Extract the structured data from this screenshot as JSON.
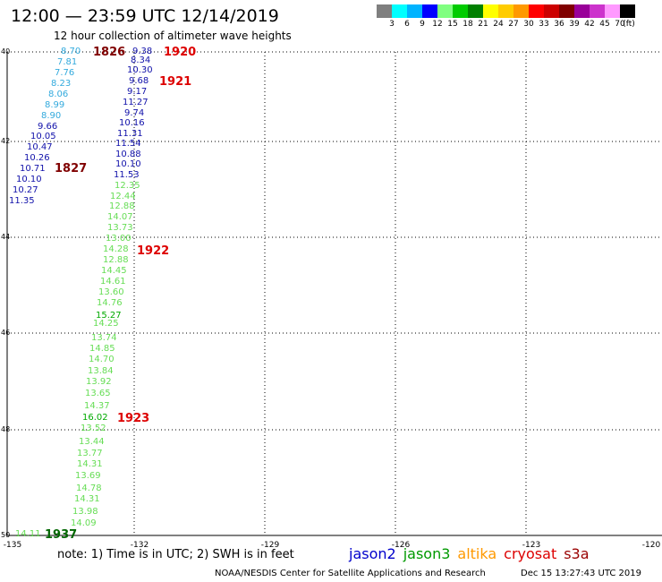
{
  "header": {
    "title": "12:00 — 23:59 UTC 12/14/2019",
    "subtitle": "12 hour collection of altimeter wave heights"
  },
  "legend": {
    "colors": [
      "#7f7f7f",
      "#00ffff",
      "#00b3ff",
      "#0000ff",
      "#80ff80",
      "#00cc00",
      "#008000",
      "#ffff00",
      "#ffcc00",
      "#ff9900",
      "#ff0000",
      "#cc0000",
      "#800000",
      "#990099",
      "#cc33cc",
      "#ff99ff",
      "#000000"
    ],
    "labels": [
      "3",
      "6",
      "9",
      "12",
      "15",
      "18",
      "21",
      "24",
      "27",
      "30",
      "33",
      "36",
      "39",
      "42",
      "45",
      "70",
      "(ft)"
    ]
  },
  "axes": {
    "lat_labels": [
      "40",
      "42",
      "44",
      "46",
      "48",
      "50"
    ],
    "lon_labels": [
      "-135",
      "-132",
      "-129",
      "-126",
      "-123",
      "-120"
    ]
  },
  "observations": [
    {
      "v": "8.70",
      "c": "#33aadd"
    },
    {
      "v": "7.81",
      "c": "#33aadd"
    },
    {
      "v": "7.76",
      "c": "#33aadd"
    },
    {
      "v": "8.23",
      "c": "#33aadd"
    },
    {
      "v": "8.06",
      "c": "#33aadd"
    },
    {
      "v": "8.99",
      "c": "#33aadd"
    },
    {
      "v": "8.90",
      "c": "#33aadd"
    },
    {
      "v": "9.66",
      "c": "#1111aa"
    },
    {
      "v": "10.05",
      "c": "#1111aa"
    },
    {
      "v": "10.47",
      "c": "#1111aa"
    },
    {
      "v": "10.26",
      "c": "#1111aa"
    },
    {
      "v": "10.71",
      "c": "#1111aa"
    },
    {
      "v": "10.10",
      "c": "#1111aa"
    },
    {
      "v": "10.27",
      "c": "#1111aa"
    },
    {
      "v": "11.35",
      "c": "#1111aa"
    },
    {
      "v": "9.38",
      "c": "#1111aa"
    },
    {
      "v": "8.34",
      "c": "#1111aa"
    },
    {
      "v": "10.30",
      "c": "#1111aa"
    },
    {
      "v": "9.68",
      "c": "#1111aa"
    },
    {
      "v": "9.17",
      "c": "#1111aa"
    },
    {
      "v": "11.27",
      "c": "#1111aa"
    },
    {
      "v": "9.74",
      "c": "#1111aa"
    },
    {
      "v": "10.16",
      "c": "#1111aa"
    },
    {
      "v": "11.31",
      "c": "#1111aa"
    },
    {
      "v": "11.54",
      "c": "#1111aa"
    },
    {
      "v": "10.88",
      "c": "#1111aa"
    },
    {
      "v": "10.10",
      "c": "#1111aa"
    },
    {
      "v": "11.53",
      "c": "#1111aa"
    },
    {
      "v": "12.35",
      "c": "#66dd55"
    },
    {
      "v": "12.44",
      "c": "#66dd55"
    },
    {
      "v": "12.88",
      "c": "#66dd55"
    },
    {
      "v": "14.07",
      "c": "#66dd55"
    },
    {
      "v": "13.73",
      "c": "#66dd55"
    },
    {
      "v": "13.00",
      "c": "#66dd55"
    },
    {
      "v": "14.28",
      "c": "#66dd55"
    },
    {
      "v": "12.88",
      "c": "#66dd55"
    },
    {
      "v": "14.45",
      "c": "#66dd55"
    },
    {
      "v": "14.61",
      "c": "#66dd55"
    },
    {
      "v": "13.60",
      "c": "#66dd55"
    },
    {
      "v": "14.76",
      "c": "#66dd55"
    },
    {
      "v": "15.27",
      "c": "#00aa00"
    },
    {
      "v": "14.25",
      "c": "#66dd55"
    },
    {
      "v": "13.74",
      "c": "#66dd55"
    },
    {
      "v": "14.85",
      "c": "#66dd55"
    },
    {
      "v": "14.70",
      "c": "#66dd55"
    },
    {
      "v": "13.84",
      "c": "#66dd55"
    },
    {
      "v": "13.92",
      "c": "#66dd55"
    },
    {
      "v": "13.65",
      "c": "#66dd55"
    },
    {
      "v": "14.37",
      "c": "#66dd55"
    },
    {
      "v": "16.02",
      "c": "#00aa00"
    },
    {
      "v": "13.52",
      "c": "#66dd55"
    },
    {
      "v": "13.44",
      "c": "#66dd55"
    },
    {
      "v": "13.77",
      "c": "#66dd55"
    },
    {
      "v": "14.31",
      "c": "#66dd55"
    },
    {
      "v": "13.69",
      "c": "#66dd55"
    },
    {
      "v": "14.78",
      "c": "#66dd55"
    },
    {
      "v": "14.31",
      "c": "#66dd55"
    },
    {
      "v": "13.98",
      "c": "#66dd55"
    },
    {
      "v": "14.09",
      "c": "#66dd55"
    },
    {
      "v": "14.11",
      "c": "#66dd55"
    }
  ],
  "hour_labels": [
    {
      "t": "1826",
      "c": "#800000"
    },
    {
      "t": "1827",
      "c": "#800000"
    },
    {
      "t": "1920",
      "c": "#dd0000"
    },
    {
      "t": "1921",
      "c": "#dd0000"
    },
    {
      "t": "1922",
      "c": "#dd0000"
    },
    {
      "t": "1923",
      "c": "#dd0000"
    },
    {
      "t": "1937",
      "c": "#006600"
    }
  ],
  "footer": {
    "note": "note:  1) Time is in UTC;  2) SWH is in feet",
    "satellites": [
      {
        "name": "jason2",
        "color": "#0000cc"
      },
      {
        "name": "jason3",
        "color": "#009900"
      },
      {
        "name": "altika",
        "color": "#ff9900"
      },
      {
        "name": "cryosat",
        "color": "#dd0000"
      },
      {
        "name": "s3a",
        "color": "#990000"
      }
    ],
    "credit": "NOAA/NESDIS Center for Satellite Applications and Research",
    "timestamp": "Dec 15 13:27:43 UTC 2019"
  }
}
